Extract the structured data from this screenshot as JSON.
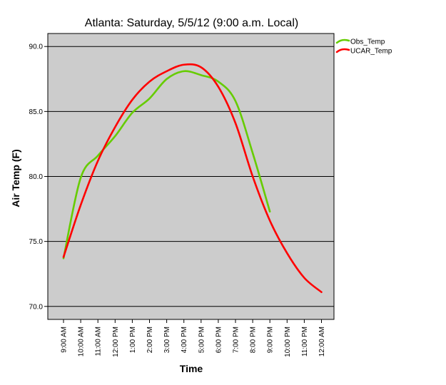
{
  "chart_data": {
    "type": "line",
    "title": "Atlanta: Saturday, 5/5/12 (9:00 a.m. Local)",
    "xlabel": "Time",
    "ylabel": "Air Temp (F)",
    "categories": [
      "9:00 AM",
      "10:00 AM",
      "11:00 AM",
      "12:00 PM",
      "1:00 PM",
      "2:00 PM",
      "3:00 PM",
      "4:00 PM",
      "5:00 PM",
      "6:00 PM",
      "7:00 PM",
      "8:00 PM",
      "9:00 PM",
      "10:00 PM",
      "11:00 PM",
      "12:00 AM"
    ],
    "ylim": [
      69.0,
      91.0
    ],
    "yticks": [
      70.0,
      75.0,
      80.0,
      85.0,
      90.0
    ],
    "ytick_labels": [
      "70.0",
      "75.0",
      "80.0",
      "85.0",
      "90.0"
    ],
    "grid": "horizontal",
    "legend_position": "top-right",
    "series": [
      {
        "name": "Obs_Temp",
        "color": "#66cc00",
        "values": [
          73.7,
          79.9,
          81.6,
          83.1,
          84.9,
          86.0,
          87.5,
          88.1,
          87.8,
          87.3,
          85.8,
          81.8,
          77.3,
          null,
          null,
          null
        ]
      },
      {
        "name": "UCAR_Temp",
        "color": "#ff0000",
        "values": [
          73.8,
          77.8,
          81.2,
          83.8,
          85.9,
          87.3,
          88.1,
          88.6,
          88.4,
          86.9,
          84.1,
          80.0,
          76.6,
          74.1,
          72.2,
          71.1
        ]
      }
    ]
  }
}
